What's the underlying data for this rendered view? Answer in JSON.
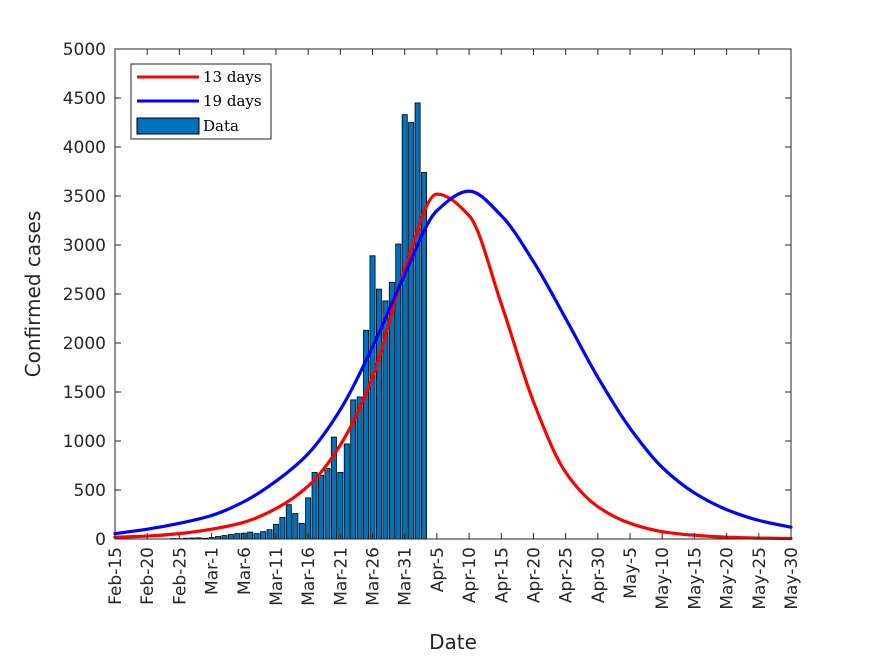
{
  "colors": {
    "curve_13": "#ff0000",
    "curve_19": "#0000ff",
    "bar_fill": "#0072bd",
    "bar_edge": "#000000",
    "axis": "#262626"
  },
  "chart_data": {
    "type": "bar",
    "xlabel": "Date",
    "ylabel": "Confirmed cases",
    "ylim": [
      0,
      5000
    ],
    "yticks": [
      0,
      500,
      1000,
      1500,
      2000,
      2500,
      3000,
      3500,
      4000,
      4500,
      5000
    ],
    "xlim_dates": [
      "2020-02-15",
      "2020-05-30"
    ],
    "xticks": [
      {
        "date": "2020-02-15",
        "label": "Feb-15"
      },
      {
        "date": "2020-02-20",
        "label": "Feb-20"
      },
      {
        "date": "2020-02-25",
        "label": "Feb-25"
      },
      {
        "date": "2020-03-01",
        "label": "Mar-1"
      },
      {
        "date": "2020-03-06",
        "label": "Mar-6"
      },
      {
        "date": "2020-03-11",
        "label": "Mar-11"
      },
      {
        "date": "2020-03-16",
        "label": "Mar-16"
      },
      {
        "date": "2020-03-21",
        "label": "Mar-21"
      },
      {
        "date": "2020-03-26",
        "label": "Mar-26"
      },
      {
        "date": "2020-03-31",
        "label": "Mar-31"
      },
      {
        "date": "2020-04-05",
        "label": "Apr-5"
      },
      {
        "date": "2020-04-10",
        "label": "Apr-10"
      },
      {
        "date": "2020-04-15",
        "label": "Apr-15"
      },
      {
        "date": "2020-04-20",
        "label": "Apr-20"
      },
      {
        "date": "2020-04-25",
        "label": "Apr-25"
      },
      {
        "date": "2020-04-30",
        "label": "Apr-30"
      },
      {
        "date": "2020-05-05",
        "label": "May-5"
      },
      {
        "date": "2020-05-10",
        "label": "May-10"
      },
      {
        "date": "2020-05-15",
        "label": "May-15"
      },
      {
        "date": "2020-05-20",
        "label": "May-20"
      },
      {
        "date": "2020-05-25",
        "label": "May-25"
      },
      {
        "date": "2020-05-30",
        "label": "May-30"
      }
    ],
    "grid": false,
    "legend_position": "top-left",
    "bars": {
      "name": "Data",
      "dates": [
        "2020-02-24",
        "2020-02-25",
        "2020-02-26",
        "2020-02-27",
        "2020-02-28",
        "2020-02-29",
        "2020-03-01",
        "2020-03-02",
        "2020-03-03",
        "2020-03-04",
        "2020-03-05",
        "2020-03-06",
        "2020-03-07",
        "2020-03-08",
        "2020-03-09",
        "2020-03-10",
        "2020-03-11",
        "2020-03-12",
        "2020-03-13",
        "2020-03-14",
        "2020-03-15",
        "2020-03-16",
        "2020-03-17",
        "2020-03-18",
        "2020-03-19",
        "2020-03-20",
        "2020-03-21",
        "2020-03-22",
        "2020-03-23",
        "2020-03-24",
        "2020-03-25",
        "2020-03-26",
        "2020-03-27",
        "2020-03-28",
        "2020-03-29",
        "2020-03-30",
        "2020-03-31",
        "2020-04-01",
        "2020-04-02",
        "2020-04-03",
        "2020-04-04"
      ],
      "values": [
        5,
        4,
        8,
        10,
        12,
        8,
        15,
        25,
        35,
        45,
        55,
        60,
        70,
        55,
        75,
        95,
        150,
        220,
        350,
        260,
        160,
        420,
        680,
        650,
        720,
        1040,
        680,
        970,
        1420,
        1450,
        2130,
        2890,
        2550,
        2430,
        2620,
        3010,
        4330,
        4250,
        4450,
        3740,
        0
      ]
    },
    "series": [
      {
        "name": "13 days",
        "x": [
          "2020-02-15",
          "2020-02-20",
          "2020-02-25",
          "2020-03-01",
          "2020-03-06",
          "2020-03-11",
          "2020-03-16",
          "2020-03-21",
          "2020-03-26",
          "2020-03-31",
          "2020-04-05",
          "2020-04-10",
          "2020-04-15",
          "2020-04-20",
          "2020-04-25",
          "2020-04-30",
          "2020-05-05",
          "2020-05-10",
          "2020-05-15",
          "2020-05-20",
          "2020-05-25",
          "2020-05-30"
        ],
        "values": [
          18,
          30,
          55,
          100,
          170,
          310,
          540,
          960,
          1650,
          2750,
          3520,
          3300,
          2400,
          1400,
          680,
          330,
          160,
          75,
          38,
          18,
          9,
          5
        ]
      },
      {
        "name": "19 days",
        "x": [
          "2020-02-15",
          "2020-02-20",
          "2020-02-25",
          "2020-03-01",
          "2020-03-06",
          "2020-03-11",
          "2020-03-16",
          "2020-03-21",
          "2020-03-26",
          "2020-03-31",
          "2020-04-05",
          "2020-04-10",
          "2020-04-15",
          "2020-04-20",
          "2020-04-25",
          "2020-04-30",
          "2020-05-05",
          "2020-05-10",
          "2020-05-15",
          "2020-05-20",
          "2020-05-25",
          "2020-05-30"
        ],
        "values": [
          55,
          100,
          160,
          240,
          380,
          590,
          870,
          1320,
          1960,
          2700,
          3350,
          3550,
          3300,
          2830,
          2250,
          1650,
          1130,
          730,
          470,
          300,
          190,
          120
        ]
      }
    ]
  }
}
